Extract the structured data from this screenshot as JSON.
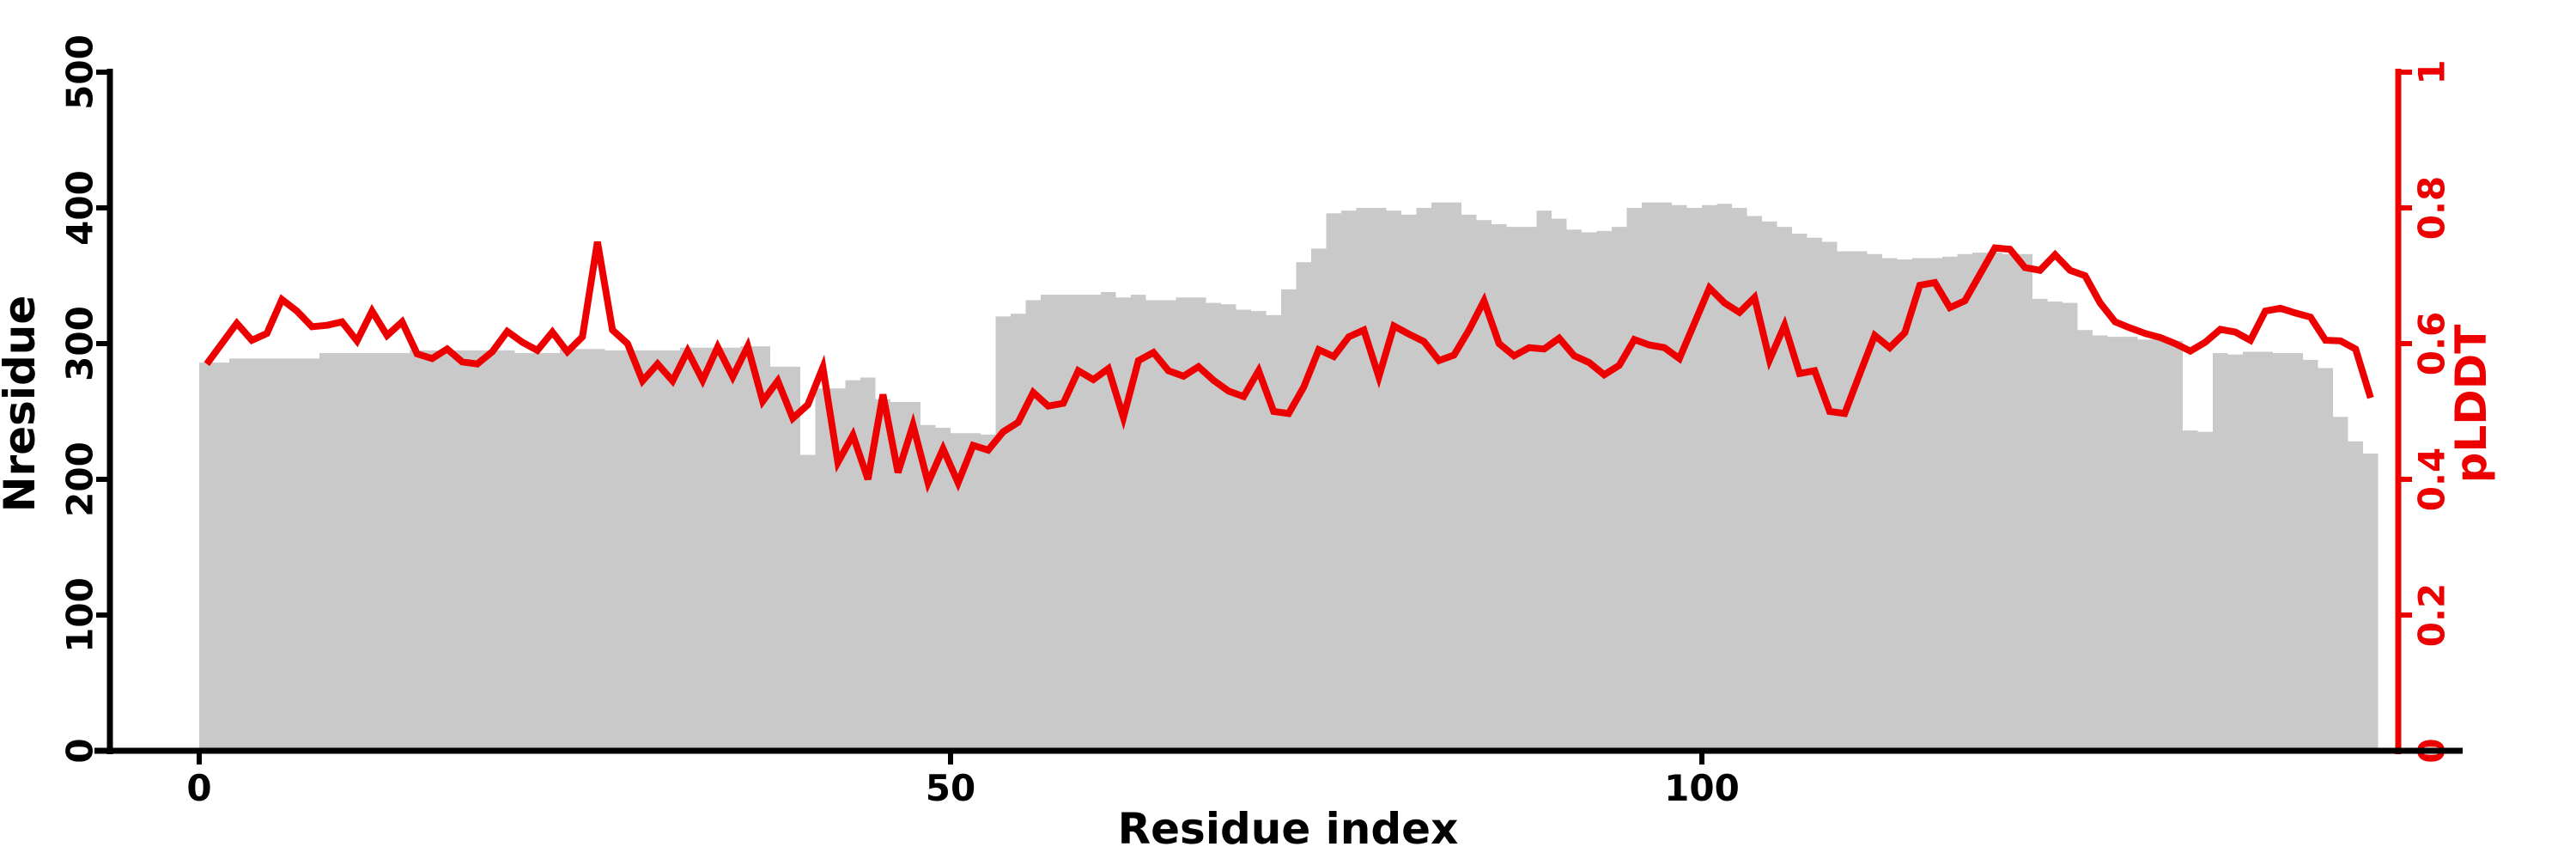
{
  "chart_data": {
    "type": "bar",
    "subtype": "bar-with-line-overlay-dual-axis",
    "title": "",
    "xlabel": "Residue index",
    "ylabel_left": "Nresidue",
    "ylabel_right": "pLDDT",
    "x_ticks": [
      0,
      50,
      100
    ],
    "x_range_residues": [
      0,
      145
    ],
    "ylim_left": [
      0,
      500
    ],
    "yticks_left": [
      "0",
      "100",
      "200",
      "300",
      "400",
      "500"
    ],
    "ylim_right": [
      0,
      1
    ],
    "yticks_right": [
      "0",
      "0.2",
      "0.4",
      "0.6",
      "0.8",
      "1"
    ],
    "grid": false,
    "legend": "none",
    "bar_color": "#c9c9c9",
    "line_color": "#ed0000",
    "left_axis_color": "#000000",
    "right_axis_color": "#ed0000",
    "series": [
      {
        "name": "Nresidue",
        "type": "bar",
        "axis": "left",
        "values": [
          286,
          286,
          289,
          289,
          289,
          289,
          289,
          289,
          293,
          293,
          293,
          293,
          293,
          293,
          295,
          295,
          295,
          295,
          295,
          295,
          295,
          293,
          293,
          293,
          296,
          296,
          296,
          295,
          295,
          295,
          295,
          295,
          297,
          297,
          297,
          297,
          298,
          298,
          283,
          283,
          218,
          267,
          267,
          273,
          275,
          259,
          257,
          257,
          240,
          238,
          234,
          234,
          233,
          320,
          322,
          332,
          336,
          336,
          336,
          336,
          338,
          334,
          336,
          332,
          332,
          334,
          334,
          330,
          329,
          325,
          324,
          321,
          340,
          360,
          370,
          396,
          398,
          400,
          400,
          398,
          395,
          400,
          404,
          404,
          395,
          391,
          388,
          386,
          386,
          398,
          392,
          384,
          382,
          383,
          386,
          400,
          404,
          404,
          402,
          400,
          402,
          403,
          400,
          394,
          390,
          386,
          381,
          378,
          375,
          368,
          368,
          366,
          363,
          362,
          363,
          363,
          364,
          366,
          367,
          367,
          366,
          366,
          333,
          331,
          330,
          310,
          306,
          305,
          305,
          303,
          304,
          302,
          236,
          235,
          293,
          292,
          294,
          294,
          293,
          293,
          288,
          282,
          246,
          228,
          219
        ]
      },
      {
        "name": "pLDDT",
        "type": "line",
        "axis": "right",
        "values": [
          0.57,
          0.6,
          0.63,
          0.605,
          0.615,
          0.665,
          0.648,
          0.625,
          0.627,
          0.632,
          0.604,
          0.648,
          0.612,
          0.632,
          0.585,
          0.578,
          0.592,
          0.573,
          0.57,
          0.588,
          0.618,
          0.602,
          0.59,
          0.617,
          0.588,
          0.61,
          0.75,
          0.62,
          0.6,
          0.545,
          0.57,
          0.545,
          0.589,
          0.546,
          0.595,
          0.551,
          0.596,
          0.515,
          0.545,
          0.49,
          0.51,
          0.565,
          0.425,
          0.465,
          0.4,
          0.525,
          0.41,
          0.48,
          0.395,
          0.445,
          0.395,
          0.45,
          0.443,
          0.47,
          0.484,
          0.528,
          0.508,
          0.512,
          0.56,
          0.547,
          0.563,
          0.491,
          0.575,
          0.587,
          0.56,
          0.552,
          0.566,
          0.546,
          0.53,
          0.522,
          0.56,
          0.5,
          0.497,
          0.536,
          0.591,
          0.581,
          0.61,
          0.62,
          0.551,
          0.626,
          0.614,
          0.603,
          0.575,
          0.583,
          0.62,
          0.663,
          0.6,
          0.582,
          0.594,
          0.592,
          0.608,
          0.582,
          0.572,
          0.554,
          0.568,
          0.606,
          0.598,
          0.594,
          0.578,
          0.63,
          0.682,
          0.66,
          0.646,
          0.668,
          0.576,
          0.627,
          0.556,
          0.56,
          0.5,
          0.497,
          0.555,
          0.612,
          0.594,
          0.616,
          0.686,
          0.69,
          0.653,
          0.663,
          0.702,
          0.741,
          0.739,
          0.712,
          0.708,
          0.731,
          0.708,
          0.7,
          0.66,
          0.632,
          0.623,
          0.615,
          0.609,
          0.6,
          0.589,
          0.602,
          0.621,
          0.617,
          0.605,
          0.648,
          0.652,
          0.645,
          0.639,
          0.605,
          0.604,
          0.592,
          0.52
        ]
      }
    ]
  }
}
